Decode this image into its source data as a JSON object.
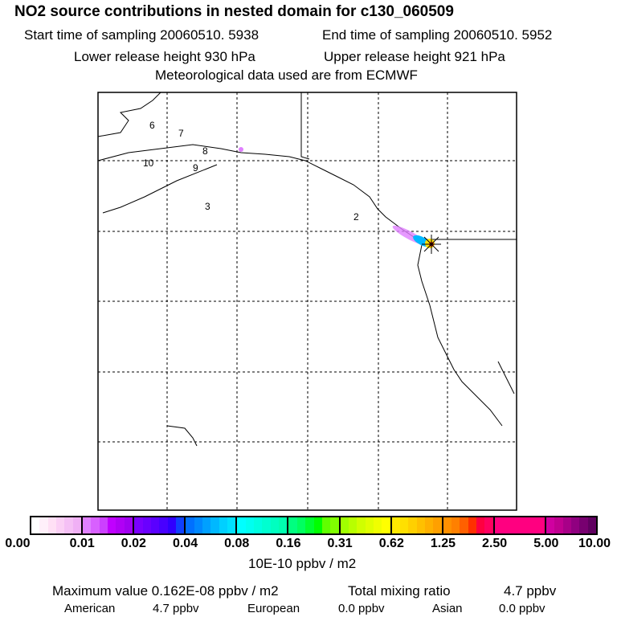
{
  "title": "NO2 source contributions in nested domain for c130_060509",
  "line1": {
    "start": "Start time of sampling 20060510.  5938",
    "end": "End time of sampling 20060510.  5952"
  },
  "line2": {
    "lower": "Lower release height  930 hPa",
    "upper": "Upper release height  921 hPa"
  },
  "line3": "Meteorological data used are from ECMWF",
  "map_labels": [
    "7",
    "6",
    "8",
    "10",
    "9",
    "3",
    "2"
  ],
  "colorbar": {
    "ticks": [
      "0.00",
      "0.01",
      "0.02",
      "0.04",
      "0.08",
      "0.16",
      "0.31",
      "0.62",
      "1.25",
      "2.50",
      "5.00",
      "10.00"
    ],
    "colors": [
      [
        "#ffffff",
        "#fff0fa",
        "#ffe0f5",
        "#fbd0f5",
        "#f5c0f5",
        "#f0b0f5"
      ],
      [
        "#e080ff",
        "#d860ff",
        "#cc40ff",
        "#c000ff",
        "#b000f5",
        "#a000f0"
      ],
      [
        "#7a00ff",
        "#6a00ff",
        "#5a00ff",
        "#4800ff",
        "#3000ff",
        "#1040ff"
      ],
      [
        "#0070ff",
        "#0088ff",
        "#00a0ff",
        "#00b8ff",
        "#00d0ff",
        "#00e0ff"
      ],
      [
        "#00ffff",
        "#00fff0",
        "#00ffe0",
        "#00ffd0",
        "#00ffc0",
        "#00ffb0"
      ],
      [
        "#00ff80",
        "#00ff60",
        "#00ff30",
        "#00ff00",
        "#60ff00",
        "#80ff00"
      ],
      [
        "#a0ff00",
        "#b8ff00",
        "#d0ff00",
        "#e0ff00",
        "#f0ff00",
        "#ffff00"
      ],
      [
        "#ffe800",
        "#ffe000",
        "#ffd000",
        "#ffc000",
        "#ffb000",
        "#ffa000"
      ],
      [
        "#ff9000",
        "#ff8000",
        "#ff6000",
        "#ff3000",
        "#ff0040",
        "#ff0060"
      ],
      [
        "#ff0080",
        "#ff0080",
        "#ff0080",
        "#ff0080",
        "#ff0080",
        "#ff0080"
      ],
      [
        "#d000a0",
        "#c00090",
        "#a80088",
        "#900080",
        "#780070",
        "#600060"
      ]
    ],
    "unit": "10E-10 ppbv / m2"
  },
  "summary": {
    "max": "Maximum value  0.162E-08 ppbv / m2",
    "total_label": "Total mixing ratio",
    "total_value": "4.7 ppbv",
    "regions": [
      {
        "name": "American",
        "value": "4.7 ppbv"
      },
      {
        "name": "European",
        "value": "0.0 ppbv"
      },
      {
        "name": "Asian",
        "value": "0.0 ppbv"
      }
    ]
  }
}
